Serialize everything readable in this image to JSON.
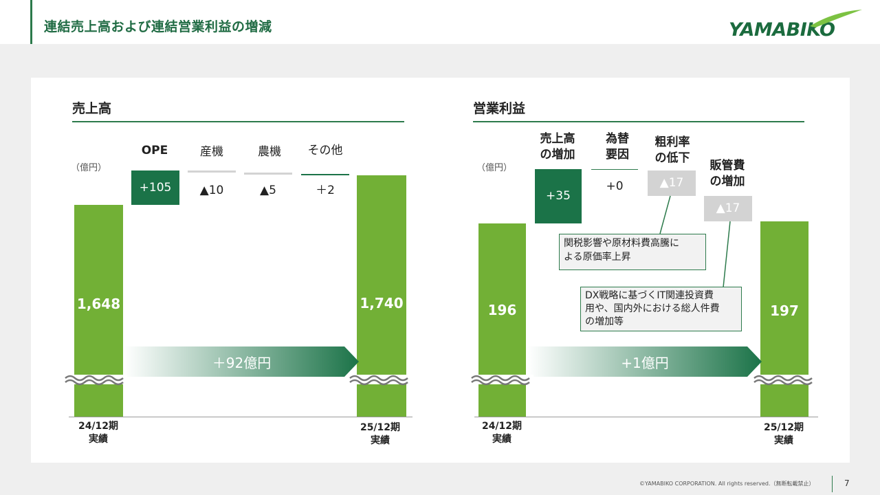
{
  "header": {
    "title": "連結売上高および連結営業利益の増減",
    "logo": "YAMABIKO",
    "accent_color": "#2c7a4b"
  },
  "sales": {
    "title": "売上高",
    "unit": "（億円）",
    "start": {
      "value": "1,648",
      "period": [
        "24/12期",
        "実績"
      ]
    },
    "end": {
      "value": "1,740",
      "period": [
        "25/12期",
        "実績"
      ]
    },
    "steps": [
      {
        "label": "OPE",
        "value": "+105"
      },
      {
        "label": "産機",
        "value": "▲10"
      },
      {
        "label": "農機",
        "value": "▲5"
      },
      {
        "label": "その他",
        "value": "＋2"
      }
    ],
    "change": "＋92億円"
  },
  "profit": {
    "title": "営業利益",
    "unit": "（億円）",
    "start": {
      "value": "196",
      "period": [
        "24/12期",
        "実績"
      ]
    },
    "end": {
      "value": "197",
      "period": [
        "25/12期",
        "実績"
      ]
    },
    "steps": [
      {
        "label": [
          "売上高",
          "の増加"
        ],
        "value": "+35"
      },
      {
        "label": [
          "為替",
          "要因"
        ],
        "value": "+0"
      },
      {
        "label": [
          "粗利率",
          "の低下"
        ],
        "value": "▲17"
      },
      {
        "label": [
          "販管費",
          "の増加"
        ],
        "value": "▲17"
      }
    ],
    "change": "+1億円",
    "notes": [
      [
        "関税影響や原材料費高騰に",
        "よる原価率上昇"
      ],
      [
        "DX戦略に基づくIT関連投資費",
        "用や、国内外における総人件費",
        "の増加等"
      ]
    ]
  },
  "colors": {
    "bar_green": "#72b036",
    "dark_green": "#1b7348",
    "gray": "#d3d3d3"
  },
  "footer": {
    "copyright": "©YAMABIKO CORPORATION. All rights reserved.（無断転載禁止）",
    "page": "7"
  }
}
